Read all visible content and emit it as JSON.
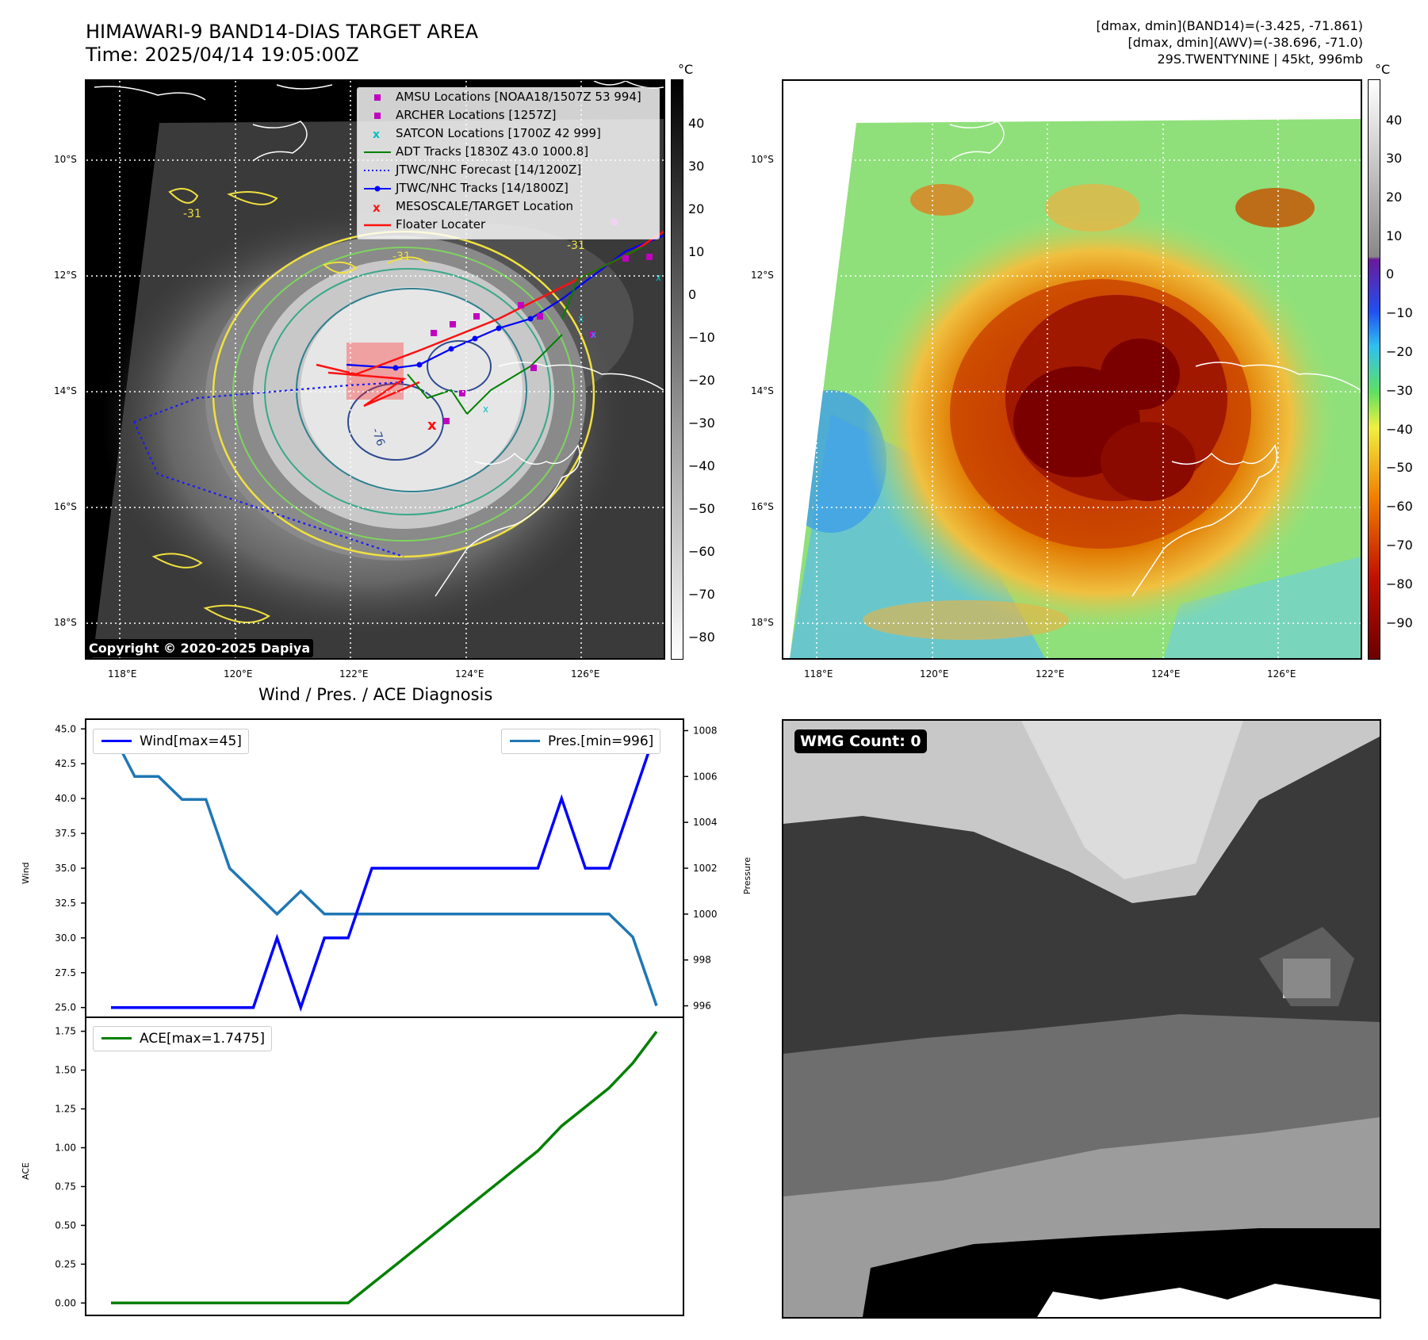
{
  "header": {
    "title_line1": "HIMAWARI-9 BAND14-DIAS TARGET AREA",
    "title_line2": "Time: 2025/04/14 19:05:00Z",
    "info_line1": "[dmax, dmin](BAND14)=(-3.425, -71.861)",
    "info_line2": "[dmax, dmin](AWV)=(-38.696, -71.0)",
    "info_line3": "29S.TWENTYNINE | 45kt, 996mb"
  },
  "maps": {
    "lat_ticks": [
      "10°S",
      "12°S",
      "14°S",
      "16°S",
      "18°S"
    ],
    "lon_ticks": [
      "118°E",
      "120°E",
      "122°E",
      "124°E",
      "126°E"
    ],
    "copyright": "Copyright © 2020-2025 Dapiya",
    "contour_labels": [
      "-31",
      "-31",
      "-31",
      "-76"
    ]
  },
  "legend": {
    "amsu": "AMSU Locations [NOAA18/1507Z 53 994]",
    "archer": "ARCHER Locations [1257Z]",
    "satcon": "SATCON Locations [1700Z 42 999]",
    "adt": "ADT Tracks [1830Z 43.0 1000.8]",
    "forecast": "JTWC/NHC Forecast [14/1200Z]",
    "tracks": "JTWC/NHC Tracks [14/1800Z]",
    "target": "MESOSCALE/TARGET Location",
    "floater": "Floater Locater"
  },
  "colorbar_gray": {
    "unit": "°C",
    "ticks": [
      "40",
      "30",
      "20",
      "10",
      "0",
      "−10",
      "−20",
      "−30",
      "−40",
      "−50",
      "−60",
      "−70",
      "−80"
    ]
  },
  "colorbar_color": {
    "unit": "°C",
    "ticks": [
      "40",
      "30",
      "20",
      "10",
      "0",
      "−10",
      "−20",
      "−30",
      "−40",
      "−50",
      "−60",
      "−70",
      "−80",
      "−90"
    ]
  },
  "diagnosis": {
    "title": "Wind / Pres. / ACE Diagnosis",
    "wind_label": "Wind",
    "pressure_label": "Pressure",
    "ace_label": "ACE",
    "wind_legend": "Wind[max=45]",
    "pres_legend": "Pres.[min=996]",
    "ace_legend": "ACE[max=1.7475]",
    "wind_ticks": [
      "45.0",
      "42.5",
      "40.0",
      "37.5",
      "35.0",
      "32.5",
      "30.0",
      "27.5",
      "25.0"
    ],
    "pres_ticks": [
      "1008",
      "1006",
      "1004",
      "1002",
      "1000",
      "998",
      "996"
    ],
    "ace_ticks": [
      "1.75",
      "1.50",
      "1.25",
      "1.00",
      "0.75",
      "0.50",
      "0.25",
      "0.00"
    ]
  },
  "wmg": {
    "label": "WMG Count: 0"
  },
  "chart_data": [
    {
      "type": "line",
      "title": "Wind / Pres. / ACE Diagnosis",
      "ylabel": "Wind",
      "ylim": [
        24.3,
        45.7
      ],
      "series": [
        {
          "name": "Wind[max=45]",
          "color": "#0000ff",
          "values": [
            25,
            25,
            25,
            25,
            25,
            25,
            25,
            30,
            25,
            30,
            30,
            35,
            35,
            35,
            35,
            35,
            35,
            35,
            35,
            40,
            35,
            35,
            40,
            45
          ]
        }
      ]
    },
    {
      "type": "line",
      "ylabel": "Pressure",
      "ylim": [
        995.5,
        1008.5
      ],
      "series": [
        {
          "name": "Pres.[min=996]",
          "color": "#1f77b4",
          "values": [
            1008,
            1006,
            1006,
            1005,
            1005,
            1002,
            1001,
            1000,
            1001,
            1000,
            1000,
            1000,
            1000,
            1000,
            1000,
            1000,
            1000,
            1000,
            1000,
            1000,
            1000,
            1000,
            999,
            996
          ]
        }
      ]
    },
    {
      "type": "line",
      "ylabel": "ACE",
      "ylim": [
        -0.08,
        1.84
      ],
      "series": [
        {
          "name": "ACE[max=1.7475]",
          "color": "#008000",
          "values": [
            0,
            0,
            0,
            0,
            0,
            0,
            0,
            0,
            0,
            0,
            0,
            0.1225,
            0.245,
            0.3675,
            0.49,
            0.6125,
            0.735,
            0.8575,
            0.98,
            1.14,
            1.2625,
            1.385,
            1.545,
            1.7475
          ]
        }
      ]
    }
  ]
}
